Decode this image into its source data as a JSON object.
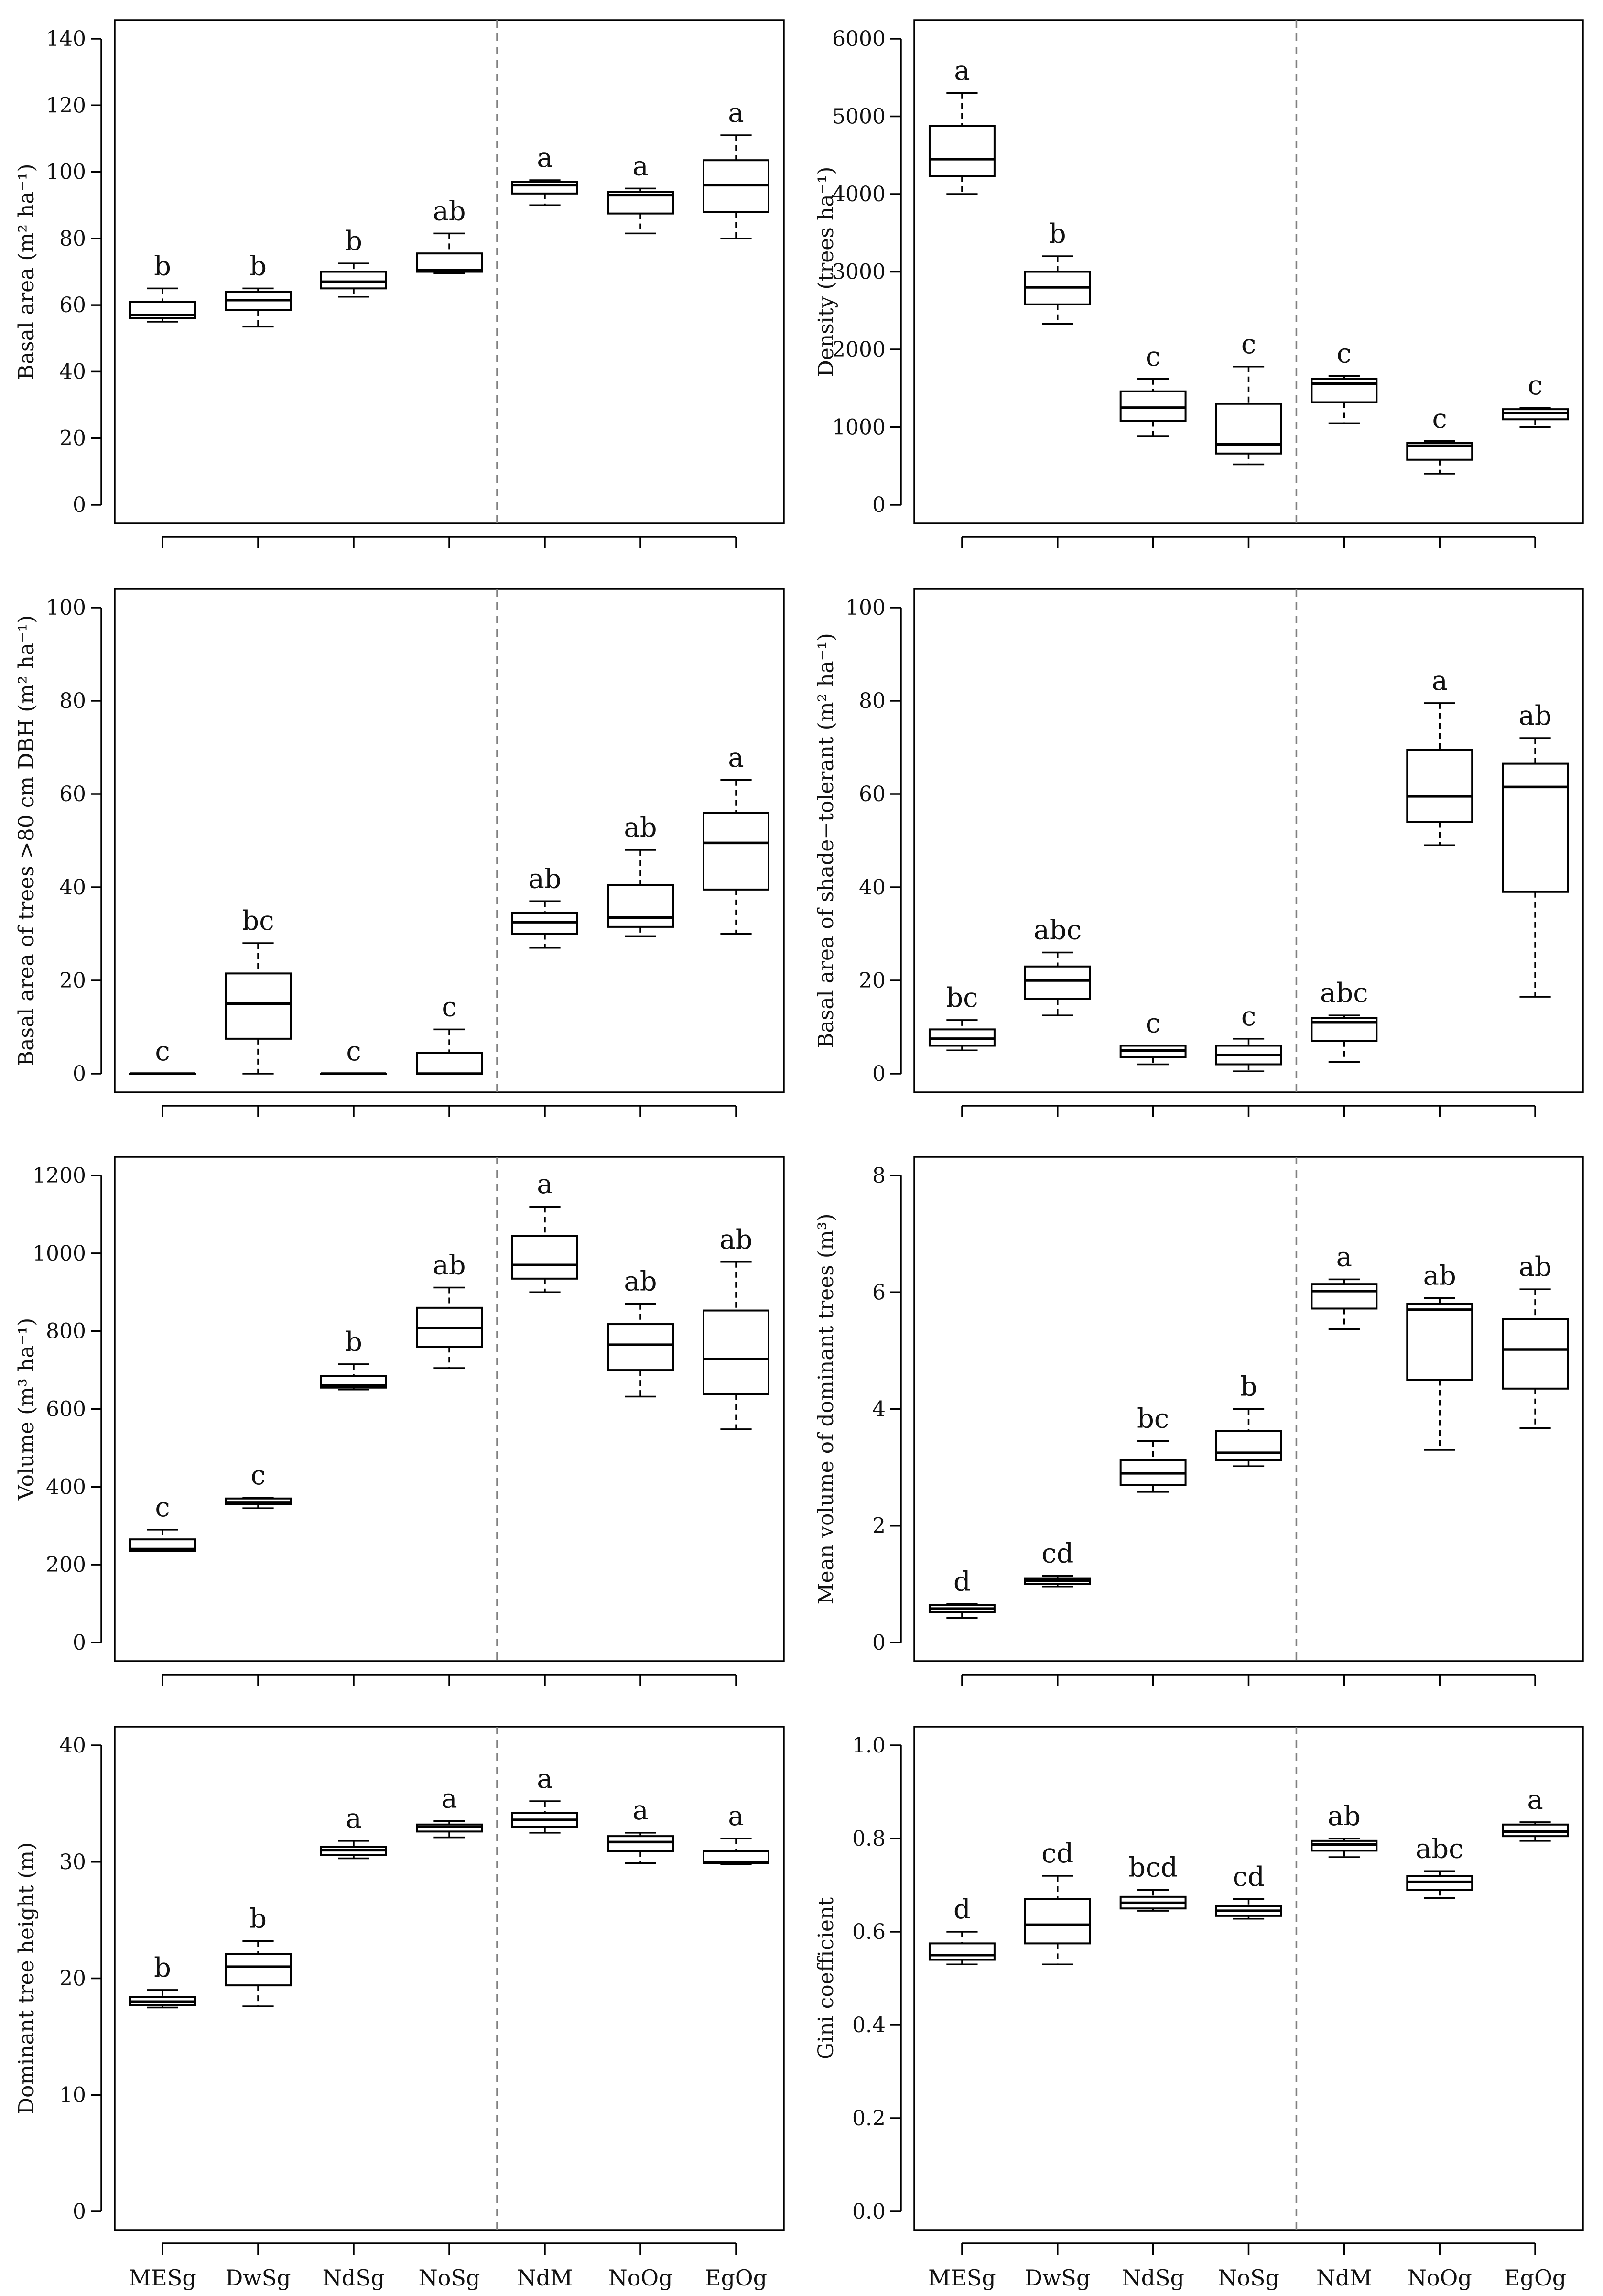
{
  "figure": {
    "categories": [
      "MESg",
      "DwSg",
      "NdSg",
      "NoSg",
      "NdM",
      "NoOg",
      "EgOg"
    ],
    "separator_after_category": "NoSg"
  },
  "chart_data": [
    {
      "id": "basal-area",
      "type": "boxplot",
      "ylabel": "Basal area (m² ha⁻¹)",
      "ylim": [
        0,
        140
      ],
      "yticks": [
        0,
        20,
        40,
        60,
        80,
        100,
        120,
        140
      ],
      "show_x_labels": false,
      "boxes": [
        {
          "category": "MESg",
          "min": 55,
          "q1": 56,
          "median": 57,
          "q3": 61,
          "max": 65,
          "letter": "b"
        },
        {
          "category": "DwSg",
          "min": 53.5,
          "q1": 58.5,
          "median": 61.5,
          "q3": 64,
          "max": 65,
          "letter": "b"
        },
        {
          "category": "NdSg",
          "min": 62.5,
          "q1": 65,
          "median": 67,
          "q3": 70,
          "max": 72.5,
          "letter": "b"
        },
        {
          "category": "NoSg",
          "min": 69.5,
          "q1": 70,
          "median": 70.5,
          "q3": 75.5,
          "max": 81.5,
          "letter": "ab"
        },
        {
          "category": "NdM",
          "min": 90,
          "q1": 93.5,
          "median": 96,
          "q3": 97,
          "max": 97.5,
          "letter": "a"
        },
        {
          "category": "NoOg",
          "min": 81.5,
          "q1": 87.5,
          "median": 93,
          "q3": 94,
          "max": 95,
          "letter": "a"
        },
        {
          "category": "EgOg",
          "min": 80,
          "q1": 88,
          "median": 96,
          "q3": 103.5,
          "max": 111,
          "letter": "a"
        }
      ]
    },
    {
      "id": "density",
      "type": "boxplot",
      "ylabel": "Density (trees ha⁻¹)",
      "ylim": [
        0,
        6000
      ],
      "yticks": [
        0,
        1000,
        2000,
        3000,
        4000,
        5000,
        6000
      ],
      "show_x_labels": false,
      "boxes": [
        {
          "category": "MESg",
          "min": 4000,
          "q1": 4230,
          "median": 4450,
          "q3": 4880,
          "max": 5300,
          "letter": "a"
        },
        {
          "category": "DwSg",
          "min": 2330,
          "q1": 2580,
          "median": 2800,
          "q3": 3000,
          "max": 3200,
          "letter": "b"
        },
        {
          "category": "NdSg",
          "min": 880,
          "q1": 1080,
          "median": 1250,
          "q3": 1460,
          "max": 1620,
          "letter": "c"
        },
        {
          "category": "NoSg",
          "min": 520,
          "q1": 660,
          "median": 780,
          "q3": 1300,
          "max": 1780,
          "letter": "c"
        },
        {
          "category": "NdM",
          "min": 1050,
          "q1": 1320,
          "median": 1560,
          "q3": 1620,
          "max": 1660,
          "letter": "c"
        },
        {
          "category": "NoOg",
          "min": 400,
          "q1": 580,
          "median": 760,
          "q3": 800,
          "max": 820,
          "letter": "c"
        },
        {
          "category": "EgOg",
          "min": 1000,
          "q1": 1100,
          "median": 1180,
          "q3": 1230,
          "max": 1250,
          "letter": "c"
        }
      ]
    },
    {
      "id": "basal-area-large-trees",
      "type": "boxplot",
      "ylabel": "Basal area of trees >80 cm DBH (m² ha⁻¹)",
      "ylim": [
        0,
        100
      ],
      "yticks": [
        0,
        20,
        40,
        60,
        80,
        100
      ],
      "show_x_labels": false,
      "boxes": [
        {
          "category": "MESg",
          "min": 0,
          "q1": 0,
          "median": 0,
          "q3": 0,
          "max": 0,
          "letter": "c"
        },
        {
          "category": "DwSg",
          "min": 0,
          "q1": 7.5,
          "median": 15,
          "q3": 21.5,
          "max": 28,
          "letter": "bc"
        },
        {
          "category": "NdSg",
          "min": 0,
          "q1": 0,
          "median": 0,
          "q3": 0,
          "max": 0,
          "letter": "c"
        },
        {
          "category": "NoSg",
          "min": 0,
          "q1": 0,
          "median": 0,
          "q3": 4.5,
          "max": 9.5,
          "letter": "c"
        },
        {
          "category": "NdM",
          "min": 27,
          "q1": 30,
          "median": 32.5,
          "q3": 34.5,
          "max": 37,
          "letter": "ab"
        },
        {
          "category": "NoOg",
          "min": 29.5,
          "q1": 31.5,
          "median": 33.5,
          "q3": 40.5,
          "max": 48,
          "letter": "ab"
        },
        {
          "category": "EgOg",
          "min": 30,
          "q1": 39.5,
          "median": 49.5,
          "q3": 56,
          "max": 63,
          "letter": "a"
        }
      ]
    },
    {
      "id": "basal-area-shade-tolerant",
      "type": "boxplot",
      "ylabel": "Basal area of shade−tolerant (m² ha⁻¹)",
      "ylim": [
        0,
        100
      ],
      "yticks": [
        0,
        20,
        40,
        60,
        80,
        100
      ],
      "show_x_labels": false,
      "boxes": [
        {
          "category": "MESg",
          "min": 5,
          "q1": 6,
          "median": 7.5,
          "q3": 9.5,
          "max": 11.5,
          "letter": "bc"
        },
        {
          "category": "DwSg",
          "min": 12.5,
          "q1": 16,
          "median": 20,
          "q3": 23,
          "max": 26,
          "letter": "abc"
        },
        {
          "category": "NdSg",
          "min": 2,
          "q1": 3.5,
          "median": 5,
          "q3": 6,
          "max": 6,
          "letter": "c"
        },
        {
          "category": "NoSg",
          "min": 0.5,
          "q1": 2,
          "median": 4,
          "q3": 6,
          "max": 7.5,
          "letter": "c"
        },
        {
          "category": "NdM",
          "min": 2.5,
          "q1": 7,
          "median": 11,
          "q3": 12,
          "max": 12.5,
          "letter": "abc"
        },
        {
          "category": "NoOg",
          "min": 49,
          "q1": 54,
          "median": 59.5,
          "q3": 69.5,
          "max": 79.5,
          "letter": "a"
        },
        {
          "category": "EgOg",
          "min": 16.5,
          "q1": 39,
          "median": 61.5,
          "q3": 66.5,
          "max": 72,
          "letter": "ab"
        }
      ]
    },
    {
      "id": "volume",
      "type": "boxplot",
      "ylabel": "Volume (m³ ha⁻¹)",
      "ylim": [
        0,
        1200
      ],
      "yticks": [
        0,
        200,
        400,
        600,
        800,
        1000,
        1200
      ],
      "show_x_labels": false,
      "boxes": [
        {
          "category": "MESg",
          "min": 235,
          "q1": 235,
          "median": 240,
          "q3": 265,
          "max": 290,
          "letter": "c"
        },
        {
          "category": "DwSg",
          "min": 345,
          "q1": 355,
          "median": 360,
          "q3": 370,
          "max": 372,
          "letter": "c"
        },
        {
          "category": "NdSg",
          "min": 650,
          "q1": 655,
          "median": 660,
          "q3": 685,
          "max": 715,
          "letter": "b"
        },
        {
          "category": "NoSg",
          "min": 705,
          "q1": 760,
          "median": 808,
          "q3": 860,
          "max": 912,
          "letter": "ab"
        },
        {
          "category": "NdM",
          "min": 900,
          "q1": 935,
          "median": 970,
          "q3": 1045,
          "max": 1120,
          "letter": "a"
        },
        {
          "category": "NoOg",
          "min": 632,
          "q1": 700,
          "median": 765,
          "q3": 818,
          "max": 870,
          "letter": "ab"
        },
        {
          "category": "EgOg",
          "min": 548,
          "q1": 638,
          "median": 728,
          "q3": 853,
          "max": 978,
          "letter": "ab"
        }
      ]
    },
    {
      "id": "mean-volume-dominant",
      "type": "boxplot",
      "ylabel": "Mean volume of dominant trees (m³)",
      "ylim": [
        0,
        8
      ],
      "yticks": [
        0,
        2,
        4,
        6,
        8
      ],
      "show_x_labels": false,
      "boxes": [
        {
          "category": "MESg",
          "min": 0.42,
          "q1": 0.52,
          "median": 0.58,
          "q3": 0.64,
          "max": 0.66,
          "letter": "d"
        },
        {
          "category": "DwSg",
          "min": 0.96,
          "q1": 1.0,
          "median": 1.06,
          "q3": 1.1,
          "max": 1.14,
          "letter": "cd"
        },
        {
          "category": "NdSg",
          "min": 2.58,
          "q1": 2.7,
          "median": 2.9,
          "q3": 3.12,
          "max": 3.45,
          "letter": "bc"
        },
        {
          "category": "NoSg",
          "min": 3.02,
          "q1": 3.12,
          "median": 3.25,
          "q3": 3.62,
          "max": 4.0,
          "letter": "b"
        },
        {
          "category": "NdM",
          "min": 5.37,
          "q1": 5.72,
          "median": 6.02,
          "q3": 6.14,
          "max": 6.22,
          "letter": "a"
        },
        {
          "category": "NoOg",
          "min": 3.3,
          "q1": 4.5,
          "median": 5.7,
          "q3": 5.8,
          "max": 5.9,
          "letter": "ab"
        },
        {
          "category": "EgOg",
          "min": 3.67,
          "q1": 4.35,
          "median": 5.02,
          "q3": 5.54,
          "max": 6.05,
          "letter": "ab"
        }
      ]
    },
    {
      "id": "dominant-height",
      "type": "boxplot",
      "ylabel": "Dominant tree height (m)",
      "ylim": [
        0,
        40
      ],
      "yticks": [
        0,
        10,
        20,
        30,
        40
      ],
      "show_x_labels": true,
      "boxes": [
        {
          "category": "MESg",
          "min": 17.5,
          "q1": 17.7,
          "median": 18,
          "q3": 18.4,
          "max": 19,
          "letter": "b"
        },
        {
          "category": "DwSg",
          "min": 17.6,
          "q1": 19.4,
          "median": 21,
          "q3": 22.1,
          "max": 23.2,
          "letter": "b"
        },
        {
          "category": "NdSg",
          "min": 30.3,
          "q1": 30.6,
          "median": 31,
          "q3": 31.3,
          "max": 31.8,
          "letter": "a"
        },
        {
          "category": "NoSg",
          "min": 32.1,
          "q1": 32.6,
          "median": 33,
          "q3": 33.2,
          "max": 33.5,
          "letter": "a"
        },
        {
          "category": "NdM",
          "min": 32.5,
          "q1": 33,
          "median": 33.6,
          "q3": 34.2,
          "max": 35.2,
          "letter": "a"
        },
        {
          "category": "NoOg",
          "min": 29.9,
          "q1": 30.9,
          "median": 31.7,
          "q3": 32.2,
          "max": 32.5,
          "letter": "a"
        },
        {
          "category": "EgOg",
          "min": 29.8,
          "q1": 29.9,
          "median": 30,
          "q3": 30.9,
          "max": 32,
          "letter": "a"
        }
      ]
    },
    {
      "id": "gini",
      "type": "boxplot",
      "ylabel": "Gini coefficient",
      "ylim": [
        0,
        1
      ],
      "yticks": [
        "0.0",
        "0.2",
        "0.4",
        "0.6",
        "0.8",
        "1.0"
      ],
      "show_x_labels": true,
      "boxes": [
        {
          "category": "MESg",
          "min": 0.53,
          "q1": 0.54,
          "median": 0.55,
          "q3": 0.575,
          "max": 0.6,
          "letter": "d"
        },
        {
          "category": "DwSg",
          "min": 0.53,
          "q1": 0.575,
          "median": 0.615,
          "q3": 0.67,
          "max": 0.72,
          "letter": "cd"
        },
        {
          "category": "NdSg",
          "min": 0.645,
          "q1": 0.65,
          "median": 0.662,
          "q3": 0.675,
          "max": 0.69,
          "letter": "bcd"
        },
        {
          "category": "NoSg",
          "min": 0.628,
          "q1": 0.634,
          "median": 0.645,
          "q3": 0.655,
          "max": 0.67,
          "letter": "cd"
        },
        {
          "category": "NdM",
          "min": 0.76,
          "q1": 0.774,
          "median": 0.787,
          "q3": 0.795,
          "max": 0.8,
          "letter": "ab"
        },
        {
          "category": "NoOg",
          "min": 0.672,
          "q1": 0.69,
          "median": 0.707,
          "q3": 0.72,
          "max": 0.73,
          "letter": "abc"
        },
        {
          "category": "EgOg",
          "min": 0.795,
          "q1": 0.805,
          "median": 0.815,
          "q3": 0.83,
          "max": 0.835,
          "letter": "a"
        }
      ]
    }
  ]
}
